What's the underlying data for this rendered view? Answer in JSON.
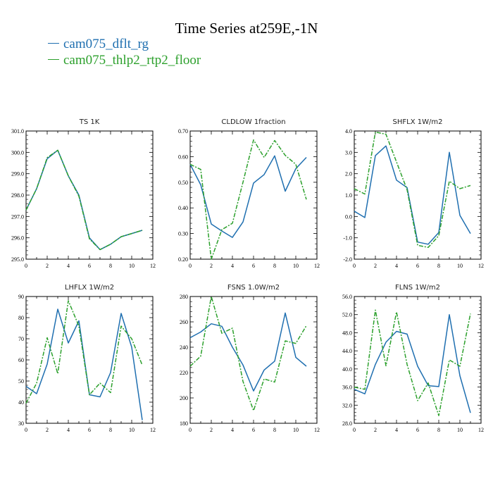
{
  "title": "Time Series at259E,-1N",
  "legend": [
    {
      "label": "cam075_dflt_rg",
      "color": "#1f6fb0"
    },
    {
      "label": "cam075_thlp2_rtp2_floor",
      "color": "#2ca02c"
    }
  ],
  "chart_data": [
    {
      "type": "line",
      "title": "TS   1K",
      "xlim": [
        0,
        12
      ],
      "xticks": [
        0,
        2,
        4,
        6,
        8,
        10,
        12
      ],
      "xtick_labels": [
        "0",
        "2",
        "4",
        "6",
        "8",
        "10",
        "12"
      ],
      "ylim": [
        295,
        301
      ],
      "yticks": [
        295,
        296,
        297,
        298,
        299,
        300,
        301
      ],
      "ytick_labels": [
        "295.0",
        "296.0",
        "297.0",
        "298.0",
        "299.0",
        "300.0",
        "301.0"
      ],
      "x": [
        0,
        1,
        2,
        3,
        4,
        5,
        6,
        7,
        8,
        9,
        10,
        11
      ],
      "series": [
        {
          "values": [
            297.3,
            298.3,
            299.7,
            300.1,
            298.9,
            298.0,
            296.0,
            295.45,
            295.7,
            296.05,
            296.2,
            296.35
          ]
        },
        {
          "values": [
            297.3,
            298.3,
            299.75,
            300.1,
            298.9,
            297.95,
            295.95,
            295.45,
            295.7,
            296.05,
            296.2,
            296.35
          ]
        }
      ]
    },
    {
      "type": "line",
      "title": "CLDLOW   1fraction",
      "xlim": [
        0,
        12
      ],
      "xticks": [
        0,
        2,
        4,
        6,
        8,
        10,
        12
      ],
      "xtick_labels": [
        "0",
        "2",
        "4",
        "6",
        "8",
        "10",
        "12"
      ],
      "ylim": [
        0.2,
        0.7
      ],
      "yticks": [
        0.2,
        0.3,
        0.4,
        0.5,
        0.6,
        0.7
      ],
      "ytick_labels": [
        "0.20",
        "0.30",
        "0.40",
        "0.50",
        "0.60",
        "0.70"
      ],
      "x": [
        0,
        1,
        2,
        3,
        4,
        5,
        6,
        7,
        8,
        9,
        10,
        11
      ],
      "series": [
        {
          "values": [
            0.57,
            0.49,
            0.337,
            0.31,
            0.285,
            0.345,
            0.497,
            0.53,
            0.603,
            0.465,
            0.553,
            0.597
          ]
        },
        {
          "values": [
            0.57,
            0.55,
            0.2,
            0.315,
            0.34,
            0.5,
            0.665,
            0.597,
            0.663,
            0.605,
            0.57,
            0.433
          ]
        }
      ]
    },
    {
      "type": "line",
      "title": "SHFLX   1W/m2",
      "xlim": [
        0,
        12
      ],
      "xticks": [
        0,
        2,
        4,
        6,
        8,
        10,
        12
      ],
      "xtick_labels": [
        "0",
        "2",
        "4",
        "6",
        "8",
        "10",
        "12"
      ],
      "ylim": [
        -2,
        4
      ],
      "yticks": [
        -2,
        -1,
        0,
        1,
        2,
        3,
        4
      ],
      "ytick_labels": [
        "-2.0",
        "-1.0",
        "0.0",
        "1.0",
        "2.0",
        "3.0",
        "4.0"
      ],
      "x": [
        0,
        1,
        2,
        3,
        4,
        5,
        6,
        7,
        8,
        9,
        10,
        11
      ],
      "series": [
        {
          "values": [
            0.25,
            -0.05,
            2.85,
            3.3,
            1.7,
            1.35,
            -1.2,
            -1.3,
            -0.75,
            3.0,
            0.05,
            -0.8
          ]
        },
        {
          "values": [
            1.3,
            1.05,
            3.95,
            3.85,
            2.55,
            1.25,
            -1.35,
            -1.45,
            -0.9,
            1.65,
            1.3,
            1.45
          ]
        }
      ]
    },
    {
      "type": "line",
      "title": "LHFLX   1W/m2",
      "xlim": [
        0,
        12
      ],
      "xticks": [
        0,
        2,
        4,
        6,
        8,
        10,
        12
      ],
      "xtick_labels": [
        "0",
        "2",
        "4",
        "6",
        "8",
        "10",
        "12"
      ],
      "ylim": [
        30,
        90
      ],
      "yticks": [
        30,
        40,
        50,
        60,
        70,
        80,
        90
      ],
      "ytick_labels": [
        "30",
        "40",
        "50",
        "60",
        "70",
        "80",
        "90"
      ],
      "x": [
        0,
        1,
        2,
        3,
        4,
        5,
        6,
        7,
        8,
        9,
        10,
        11
      ],
      "series": [
        {
          "values": [
            47.5,
            44,
            58,
            84,
            68,
            78.5,
            43.5,
            42.5,
            54,
            82,
            66,
            31.5
          ]
        },
        {
          "values": [
            39.5,
            49,
            70.5,
            53.5,
            88,
            76,
            43.5,
            49,
            44.5,
            76,
            70,
            57.5
          ]
        }
      ]
    },
    {
      "type": "line",
      "title": "FSNS   1.0W/m2",
      "xlim": [
        0,
        12
      ],
      "xticks": [
        0,
        2,
        4,
        6,
        8,
        10,
        12
      ],
      "xtick_labels": [
        "0",
        "2",
        "4",
        "6",
        "8",
        "10",
        "12"
      ],
      "ylim": [
        180,
        280
      ],
      "yticks": [
        180,
        200,
        220,
        240,
        260,
        280
      ],
      "ytick_labels": [
        "180",
        "200",
        "220",
        "240",
        "260",
        "280"
      ],
      "x": [
        0,
        1,
        2,
        3,
        4,
        5,
        6,
        7,
        8,
        9,
        10,
        11
      ],
      "series": [
        {
          "values": [
            247.5,
            252,
            258.5,
            256.5,
            240,
            226,
            205.5,
            222,
            229,
            267,
            232,
            225
          ]
        },
        {
          "values": [
            225,
            233,
            280,
            251,
            255,
            213,
            190,
            215,
            212.5,
            245,
            243,
            257
          ]
        }
      ]
    },
    {
      "type": "line",
      "title": "FLNS   1W/m2",
      "xlim": [
        0,
        12
      ],
      "xticks": [
        0,
        2,
        4,
        6,
        8,
        10,
        12
      ],
      "xtick_labels": [
        "0",
        "2",
        "4",
        "6",
        "8",
        "10",
        "12"
      ],
      "ylim": [
        28,
        56
      ],
      "yticks": [
        28,
        32,
        36,
        40,
        44,
        48,
        52,
        56
      ],
      "ytick_labels": [
        "28.0",
        "32.0",
        "36.0",
        "40.0",
        "44.0",
        "48.0",
        "52.0",
        "56.0"
      ],
      "x": [
        0,
        1,
        2,
        3,
        4,
        5,
        6,
        7,
        8,
        9,
        10,
        11
      ],
      "series": [
        {
          "values": [
            35.5,
            34.5,
            41,
            45.9,
            48.3,
            47.7,
            40.6,
            36.3,
            36.1,
            52,
            38.5,
            30.3
          ]
        },
        {
          "values": [
            36,
            35.5,
            53,
            40.7,
            52.6,
            41,
            33,
            36.9,
            29.7,
            42,
            40.6,
            52.2
          ]
        }
      ]
    }
  ]
}
